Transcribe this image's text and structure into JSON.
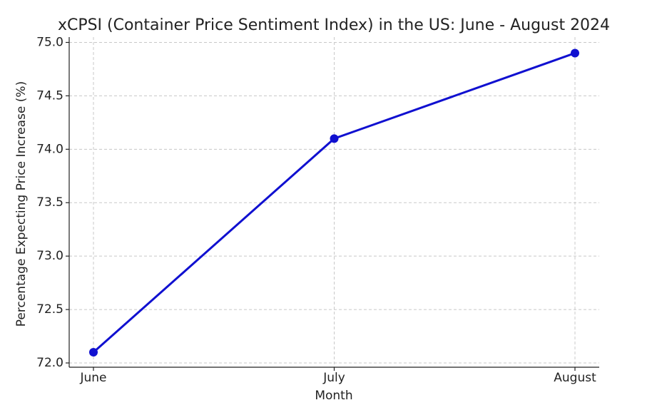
{
  "chart_data": {
    "type": "line",
    "title": "xCPSI (Container Price Sentiment Index) in the US: June - August 2024",
    "x_label": "Month",
    "y_label": "Percentage Expecting Price Increase (%)",
    "categories": [
      "June",
      "July",
      "August"
    ],
    "series": [
      {
        "name": "xCPSI",
        "color": "#1010d0",
        "values": [
          72.1,
          74.1,
          74.9
        ]
      }
    ],
    "ylim": [
      71.96,
      75.05
    ],
    "yticks": [
      {
        "value": 72,
        "label": "72.0"
      },
      {
        "value": 72.5,
        "label": "72.5"
      },
      {
        "value": 73,
        "label": "73.0"
      },
      {
        "value": 73.5,
        "label": "73.5"
      },
      {
        "value": 74,
        "label": "74.0"
      },
      {
        "value": 74.5,
        "label": "74.5"
      },
      {
        "value": 75,
        "label": "75.0"
      }
    ],
    "grid": true
  }
}
